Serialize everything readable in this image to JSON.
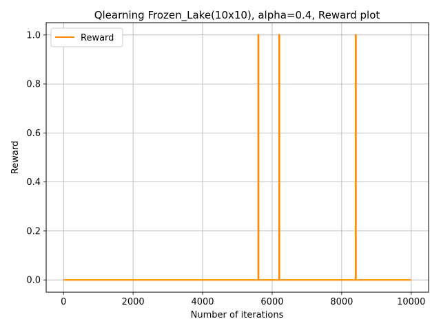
{
  "chart_data": {
    "type": "line",
    "title": "Qlearning Frozen_Lake(10x10),  alpha=0.4, Reward plot",
    "xlabel": "Number of iterations",
    "ylabel": "Reward",
    "xlim": [
      -500,
      10500
    ],
    "ylim": [
      -0.05,
      1.05
    ],
    "xticks": [
      0,
      2000,
      4000,
      6000,
      8000,
      10000
    ],
    "xtick_labels": [
      "0",
      "2000",
      "4000",
      "6000",
      "8000",
      "10000"
    ],
    "yticks": [
      0.0,
      0.2,
      0.4,
      0.6,
      0.8,
      1.0
    ],
    "ytick_labels": [
      "0.0",
      "0.2",
      "0.4",
      "0.6",
      "0.8",
      "1.0"
    ],
    "grid": true,
    "legend": "top-left",
    "series": [
      {
        "name": "Reward",
        "color": "#ff8c00",
        "points": [
          [
            0,
            0
          ],
          [
            5600,
            0
          ],
          [
            5600,
            1
          ],
          [
            5610,
            1
          ],
          [
            5610,
            0
          ],
          [
            6200,
            0
          ],
          [
            6200,
            1
          ],
          [
            6210,
            1
          ],
          [
            6210,
            0
          ],
          [
            8400,
            0
          ],
          [
            8400,
            1
          ],
          [
            8410,
            1
          ],
          [
            8410,
            0
          ],
          [
            10000,
            0
          ]
        ]
      }
    ]
  }
}
